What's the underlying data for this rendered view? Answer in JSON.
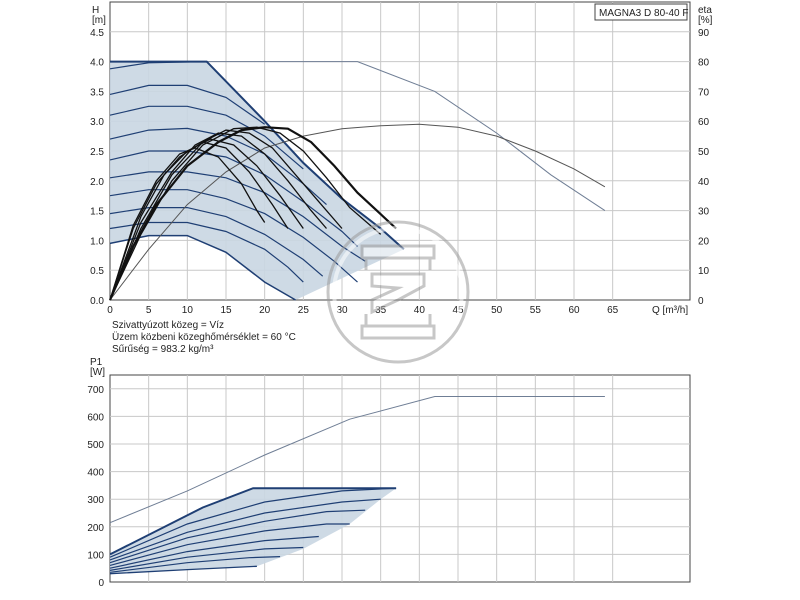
{
  "title": "MAGNA3 D 80-40 F",
  "notes": [
    "Szivattyúzott közeg = Víz",
    "Üzem közbeni közeghőmérséklet = 60 °C",
    "Sűrűség = 983.2 kg/m³"
  ],
  "colors": {
    "curve_dark": "#1f3f74",
    "curve_thin": "#6f7e95",
    "fill": "#c9d6e2",
    "grid": "#c8c8c8",
    "axis": "#444444",
    "black": "#111111"
  },
  "chart_data": [
    {
      "type": "line",
      "name": "head",
      "ylabel": "H",
      "yunit": "[m]",
      "y2label": "eta",
      "y2unit": "[%]",
      "xlabel": "Q [m³/h]",
      "xlim": [
        0,
        75
      ],
      "ylim": [
        0,
        5
      ],
      "y2lim": [
        0,
        100
      ],
      "xticks": [
        "0",
        "5",
        "10",
        "15",
        "20",
        "25",
        "30",
        "35",
        "40",
        "45",
        "50",
        "55",
        "60",
        "65"
      ],
      "yticks": [
        "0.0",
        "0.5",
        "1.0",
        "1.5",
        "2.0",
        "2.5",
        "3.0",
        "3.5",
        "4.0",
        "4.5"
      ],
      "y2ticks": [
        "0",
        "10",
        "20",
        "30",
        "40",
        "50",
        "60",
        "70",
        "80",
        "90"
      ],
      "grid": true,
      "max_curve": [
        [
          0,
          4.0
        ],
        [
          12.5,
          4.0
        ],
        [
          20,
          3.0
        ],
        [
          25,
          2.3
        ],
        [
          30,
          1.7
        ],
        [
          35,
          1.2
        ],
        [
          38,
          0.85
        ]
      ],
      "min_curve": [
        [
          0,
          0.95
        ],
        [
          5,
          1.08
        ],
        [
          10,
          1.08
        ],
        [
          15,
          0.8
        ],
        [
          20,
          0.3
        ],
        [
          24,
          0.0
        ]
      ],
      "control_curves": [
        [
          [
            0,
            3.88
          ],
          [
            5,
            3.98
          ],
          [
            12,
            4.0
          ]
        ],
        [
          [
            0,
            3.45
          ],
          [
            5,
            3.6
          ],
          [
            10,
            3.6
          ],
          [
            15,
            3.4
          ],
          [
            20,
            2.95
          ]
        ],
        [
          [
            0,
            3.1
          ],
          [
            5,
            3.25
          ],
          [
            10,
            3.25
          ],
          [
            15,
            3.1
          ],
          [
            20,
            2.75
          ],
          [
            25,
            2.2
          ]
        ],
        [
          [
            0,
            2.7
          ],
          [
            5,
            2.85
          ],
          [
            10,
            2.88
          ],
          [
            15,
            2.75
          ],
          [
            20,
            2.45
          ],
          [
            25,
            1.95
          ],
          [
            28,
            1.6
          ]
        ],
        [
          [
            0,
            2.35
          ],
          [
            5,
            2.5
          ],
          [
            10,
            2.5
          ],
          [
            15,
            2.4
          ],
          [
            20,
            2.1
          ],
          [
            25,
            1.65
          ],
          [
            30,
            1.15
          ],
          [
            32,
            0.9
          ]
        ],
        [
          [
            0,
            2.05
          ],
          [
            5,
            2.15
          ],
          [
            10,
            2.15
          ],
          [
            15,
            2.05
          ],
          [
            20,
            1.8
          ],
          [
            25,
            1.4
          ],
          [
            30,
            0.9
          ],
          [
            33,
            0.65
          ]
        ],
        [
          [
            0,
            1.75
          ],
          [
            5,
            1.85
          ],
          [
            10,
            1.85
          ],
          [
            15,
            1.7
          ],
          [
            20,
            1.45
          ],
          [
            25,
            1.05
          ],
          [
            29,
            0.65
          ],
          [
            32,
            0.3
          ]
        ],
        [
          [
            0,
            1.45
          ],
          [
            5,
            1.55
          ],
          [
            10,
            1.55
          ],
          [
            15,
            1.4
          ],
          [
            20,
            1.1
          ],
          [
            25,
            0.68
          ],
          [
            27.5,
            0.4
          ]
        ],
        [
          [
            0,
            1.2
          ],
          [
            5,
            1.3
          ],
          [
            10,
            1.3
          ],
          [
            15,
            1.15
          ],
          [
            20,
            0.85
          ],
          [
            23,
            0.55
          ],
          [
            25,
            0.3
          ]
        ]
      ],
      "curve_upper_thin": [
        [
          0,
          4.0
        ],
        [
          32,
          4.0
        ],
        [
          42,
          3.5
        ],
        [
          50,
          2.8
        ],
        [
          57,
          2.1
        ],
        [
          64,
          1.5
        ]
      ],
      "eta_curve": [
        [
          0,
          0
        ],
        [
          5,
          17
        ],
        [
          10,
          32
        ],
        [
          15,
          43
        ],
        [
          20,
          51
        ],
        [
          25,
          55
        ],
        [
          30,
          57.5
        ],
        [
          35,
          58.5
        ],
        [
          40,
          59
        ],
        [
          45,
          58
        ],
        [
          50,
          55
        ],
        [
          55,
          50
        ],
        [
          60,
          44
        ],
        [
          64,
          38
        ]
      ],
      "eta_curves_black": [
        [
          [
            0,
            0
          ],
          [
            3,
            18
          ],
          [
            6,
            32
          ],
          [
            10,
            45
          ],
          [
            14,
            53
          ],
          [
            17,
            57
          ],
          [
            20,
            58
          ],
          [
            23,
            57.5
          ],
          [
            26,
            53
          ],
          [
            29,
            45
          ],
          [
            32,
            36
          ],
          [
            37,
            24
          ]
        ],
        [
          [
            0,
            0
          ],
          [
            4,
            22
          ],
          [
            8,
            40
          ],
          [
            12,
            52
          ],
          [
            16,
            57.5
          ],
          [
            19,
            58
          ],
          [
            22,
            56
          ],
          [
            25,
            50
          ],
          [
            28,
            41
          ],
          [
            31,
            31
          ],
          [
            35,
            22
          ]
        ],
        [
          [
            0,
            0
          ],
          [
            4,
            24
          ],
          [
            8,
            42
          ],
          [
            12,
            53
          ],
          [
            15,
            57
          ],
          [
            18,
            56
          ],
          [
            21,
            51
          ],
          [
            24,
            42
          ],
          [
            27,
            33
          ],
          [
            30,
            24
          ]
        ],
        [
          [
            0,
            0
          ],
          [
            4,
            26
          ],
          [
            8,
            43
          ],
          [
            11,
            52
          ],
          [
            14,
            56
          ],
          [
            17,
            55
          ],
          [
            20,
            49
          ],
          [
            23,
            40
          ],
          [
            26,
            30
          ],
          [
            28,
            24
          ]
        ],
        [
          [
            0,
            0
          ],
          [
            4,
            28
          ],
          [
            7,
            42
          ],
          [
            10,
            50
          ],
          [
            13,
            54
          ],
          [
            16,
            52
          ],
          [
            19,
            45
          ],
          [
            22,
            35
          ],
          [
            25,
            24
          ]
        ],
        [
          [
            0,
            0
          ],
          [
            3,
            24
          ],
          [
            6,
            39
          ],
          [
            9,
            48
          ],
          [
            12,
            53
          ],
          [
            15,
            51
          ],
          [
            18,
            43
          ],
          [
            21,
            32
          ],
          [
            23,
            24
          ]
        ],
        [
          [
            0,
            0
          ],
          [
            3,
            25
          ],
          [
            6,
            40
          ],
          [
            9,
            49
          ],
          [
            11,
            51
          ],
          [
            14,
            48
          ],
          [
            17,
            39
          ],
          [
            19,
            30
          ],
          [
            20,
            26
          ]
        ]
      ]
    },
    {
      "type": "line",
      "name": "power",
      "ylabel": "P1",
      "yunit": "[W]",
      "xlim": [
        0,
        75
      ],
      "ylim": [
        0,
        750
      ],
      "yticks": [
        "0",
        "100",
        "200",
        "300",
        "400",
        "500",
        "600",
        "700"
      ],
      "grid": true,
      "p1_thin": [
        [
          0,
          215
        ],
        [
          10,
          330
        ],
        [
          20,
          460
        ],
        [
          31,
          590
        ],
        [
          42,
          672
        ],
        [
          64,
          672
        ]
      ],
      "p1_max": [
        [
          0,
          100
        ],
        [
          12,
          270
        ],
        [
          18.5,
          340
        ],
        [
          37,
          340
        ]
      ],
      "p1_min": [
        [
          0,
          30
        ],
        [
          10,
          45
        ],
        [
          19,
          57
        ]
      ],
      "p1_right_edge": [
        [
          37,
          340
        ],
        [
          35,
          300
        ],
        [
          31,
          210
        ],
        [
          25,
          120
        ],
        [
          19,
          57
        ]
      ],
      "p1_curves": [
        [
          [
            0,
            90
          ],
          [
            10,
            210
          ],
          [
            20,
            290
          ],
          [
            30,
            330
          ],
          [
            37,
            340
          ]
        ],
        [
          [
            0,
            80
          ],
          [
            10,
            180
          ],
          [
            20,
            250
          ],
          [
            30,
            290
          ],
          [
            35,
            300
          ]
        ],
        [
          [
            0,
            70
          ],
          [
            10,
            160
          ],
          [
            20,
            220
          ],
          [
            28,
            255
          ],
          [
            33,
            260
          ]
        ],
        [
          [
            0,
            60
          ],
          [
            10,
            135
          ],
          [
            20,
            185
          ],
          [
            28,
            210
          ],
          [
            31,
            210
          ]
        ],
        [
          [
            0,
            50
          ],
          [
            10,
            110
          ],
          [
            20,
            150
          ],
          [
            27,
            165
          ]
        ],
        [
          [
            0,
            42
          ],
          [
            10,
            90
          ],
          [
            20,
            120
          ],
          [
            25,
            125
          ]
        ],
        [
          [
            0,
            35
          ],
          [
            10,
            70
          ],
          [
            18,
            88
          ],
          [
            22,
            92
          ]
        ]
      ]
    }
  ]
}
